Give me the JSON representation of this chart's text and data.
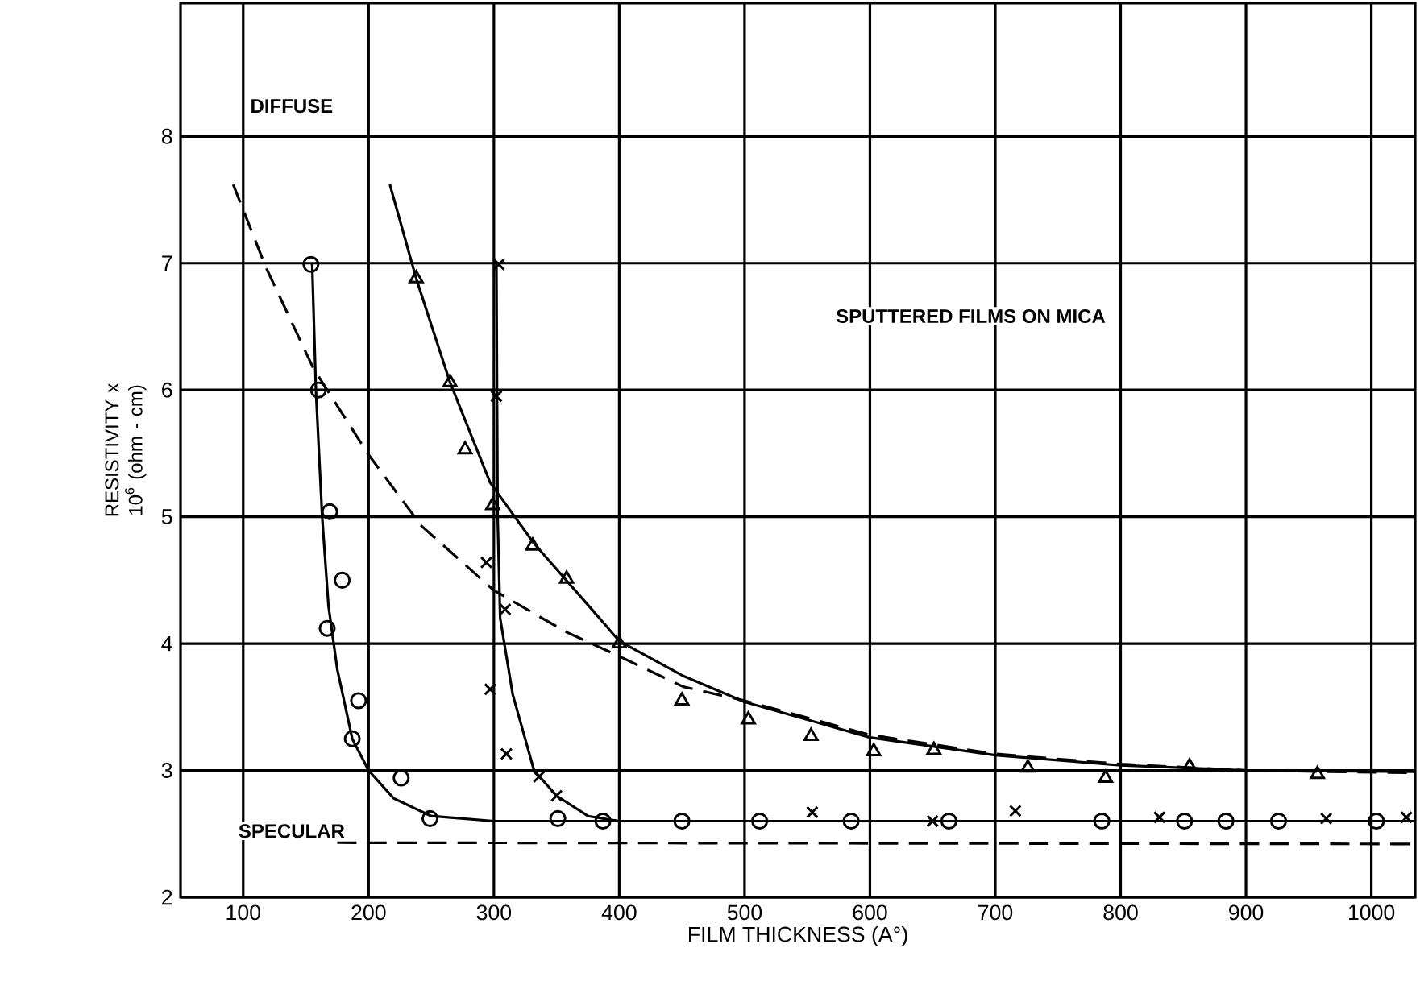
{
  "chart_data": {
    "type": "scatter",
    "xlabel": "FILM THICKNESS (A°)",
    "ylabel": "RESISTIVITY x 10$^{6}$ (ohm - cm)",
    "xlim": [
      50,
      1035
    ],
    "ylim": [
      2,
      9.05
    ],
    "xticks": [
      100,
      200,
      300,
      400,
      500,
      600,
      700,
      800,
      900,
      1000
    ],
    "yticks": [
      2,
      3,
      4,
      5,
      6,
      7,
      8
    ],
    "grid": true,
    "annotations": [
      "SPUTTERED FILMS ON MICA",
      "DIFFUSE",
      "SPECULAR"
    ],
    "series": [
      {
        "marker": "circle",
        "color": "#000000",
        "x": [
          154,
          160,
          167,
          169,
          179,
          187,
          192,
          226,
          249,
          351,
          387,
          450,
          512,
          585,
          663,
          785,
          851,
          884,
          926,
          1004
        ],
        "values": [
          6.99,
          6.0,
          4.12,
          5.04,
          4.5,
          3.25,
          3.55,
          2.94,
          2.62,
          2.62,
          2.6,
          2.6,
          2.6,
          2.6,
          2.6,
          2.6,
          2.6,
          2.6,
          2.6,
          2.6
        ]
      },
      {
        "marker": "cross",
        "color": "#000000",
        "x": [
          304,
          302,
          294,
          309,
          297,
          310,
          336,
          350,
          554,
          650,
          716,
          831,
          964,
          1028
        ],
        "values": [
          6.99,
          5.95,
          4.64,
          4.27,
          3.64,
          3.13,
          2.95,
          2.8,
          2.67,
          2.6,
          2.68,
          2.63,
          2.62,
          2.63
        ]
      },
      {
        "marker": "triangle",
        "color": "#000000",
        "x": [
          238,
          265,
          277,
          299,
          331,
          358,
          400,
          450,
          503,
          553,
          603,
          651,
          726,
          788,
          855,
          957
        ],
        "values": [
          6.88,
          6.06,
          5.53,
          5.09,
          4.77,
          4.51,
          4.0,
          3.55,
          3.4,
          3.27,
          3.15,
          3.16,
          3.02,
          2.94,
          3.03,
          2.97
        ]
      },
      {
        "type": "line",
        "line_style": "solid",
        "color": "#000000",
        "x": [
          155,
          158,
          163,
          168,
          175,
          187,
          200,
          220,
          250,
          300,
          1035
        ],
        "values": [
          7.0,
          6.0,
          5.0,
          4.3,
          3.8,
          3.25,
          3.0,
          2.78,
          2.64,
          2.6,
          2.6
        ]
      },
      {
        "type": "line",
        "line_style": "solid",
        "color": "#000000",
        "x": [
          302,
          303,
          305,
          315,
          332,
          350,
          375,
          400
        ],
        "values": [
          7.0,
          5.0,
          4.2,
          3.6,
          3.0,
          2.8,
          2.64,
          2.6
        ]
      },
      {
        "type": "line",
        "line_style": "solid",
        "color": "#000000",
        "x": [
          217,
          238,
          265,
          297,
          332,
          379,
          400,
          450,
          500,
          600,
          700,
          800,
          900,
          1035
        ],
        "values": [
          7.62,
          6.88,
          6.06,
          5.27,
          4.79,
          4.26,
          4.02,
          3.75,
          3.54,
          3.26,
          3.12,
          3.04,
          3.0,
          2.99
        ]
      },
      {
        "type": "line",
        "line_style": "dashed",
        "color": "#000000",
        "x": [
          92,
          118,
          156,
          200,
          242,
          300,
          358,
          400,
          451,
          500,
          600,
          700,
          800,
          900,
          1035
        ],
        "values": [
          7.62,
          6.97,
          6.17,
          5.49,
          4.93,
          4.42,
          4.09,
          3.9,
          3.66,
          3.55,
          3.28,
          3.13,
          3.05,
          3.0,
          2.98
        ]
      },
      {
        "type": "line",
        "line_style": "dashed",
        "color": "#000000",
        "x": [
          175,
          1035
        ],
        "values": [
          2.43,
          2.42
        ]
      }
    ]
  }
}
